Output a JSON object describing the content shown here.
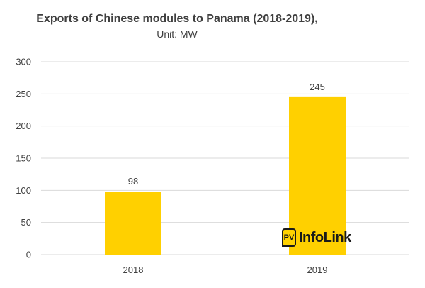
{
  "chart_data": {
    "type": "bar",
    "title": "Exports of Chinese modules to Panama (2018-2019),",
    "subtitle": "Unit: MW",
    "categories": [
      "2018",
      "2019"
    ],
    "values": [
      98,
      245
    ],
    "data_labels": [
      "98",
      "245"
    ],
    "ylim": [
      0,
      300
    ],
    "yticks": [
      0,
      50,
      100,
      150,
      200,
      250,
      300
    ],
    "xlabel": "",
    "ylabel": "",
    "grid": true,
    "legend": "none",
    "bar_color": "#ffd000",
    "grid_color": "#d9d9d9"
  },
  "logo": {
    "mark": "PV",
    "text": "InfoLink"
  }
}
